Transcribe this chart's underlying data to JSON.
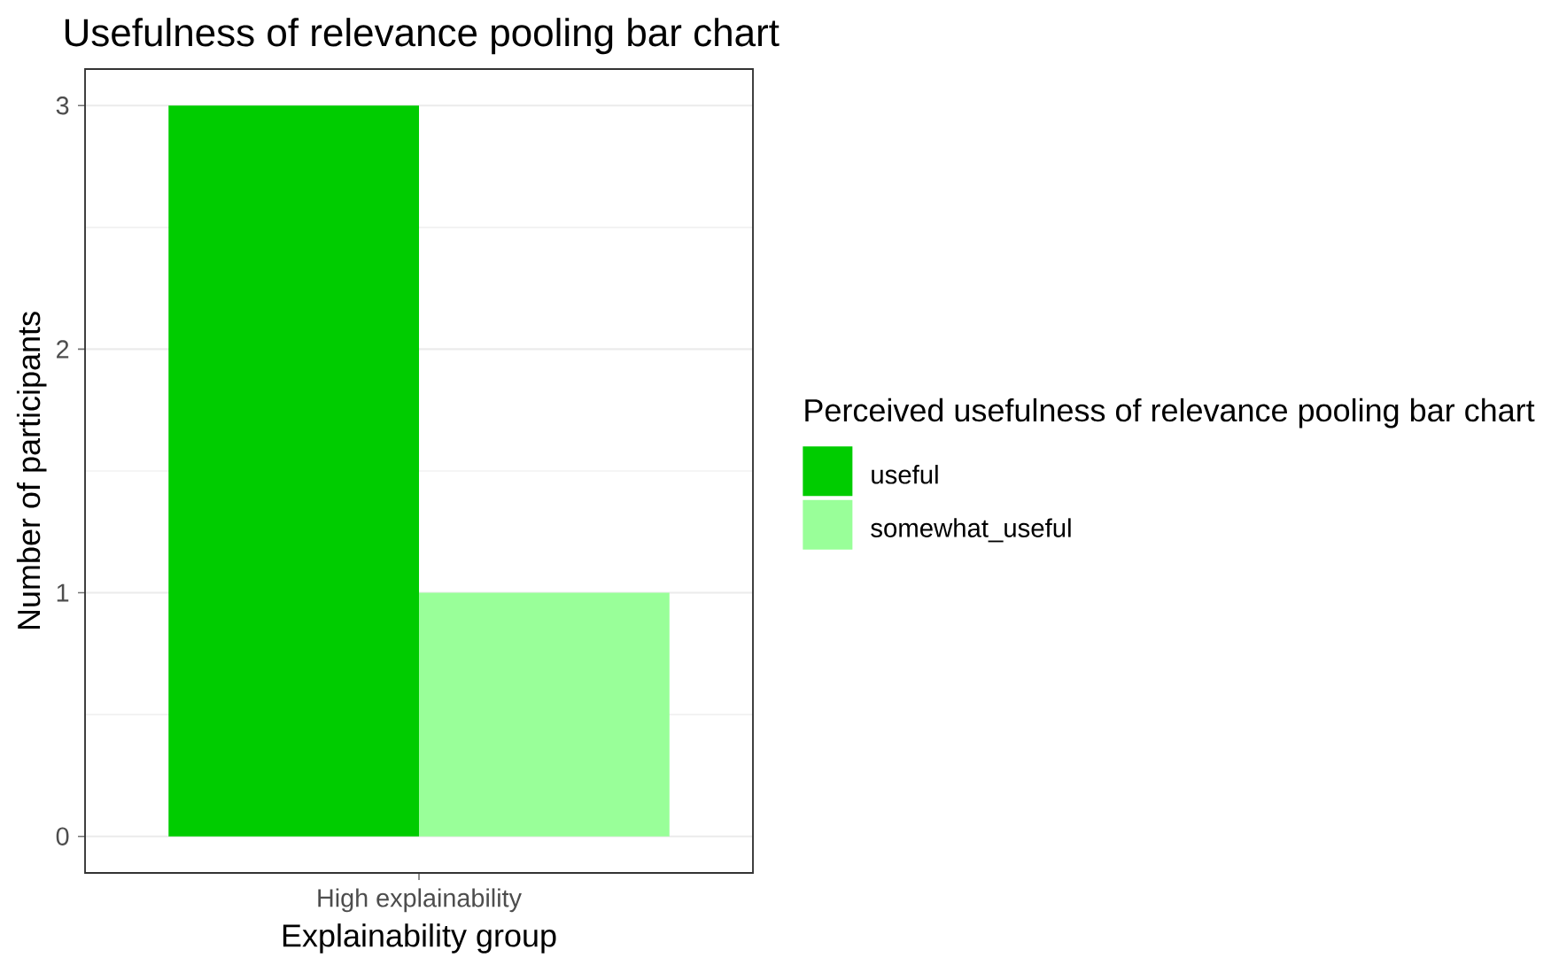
{
  "chart_data": {
    "type": "bar",
    "title": "Usefulness of relevance pooling bar chart",
    "xlabel": "Explainability group",
    "ylabel": "Number of participants",
    "legend_title": "Perceived usefulness of relevance pooling bar chart",
    "categories": [
      "High explainability"
    ],
    "series": [
      {
        "name": "useful",
        "color": "#00cc00",
        "values": [
          3
        ]
      },
      {
        "name": "somewhat_useful",
        "color": "#99ff99",
        "values": [
          1
        ]
      }
    ],
    "ylim": [
      -0.15,
      3.15
    ],
    "yticks": [
      0,
      1,
      2,
      3
    ],
    "grid": "y",
    "legend": "right"
  }
}
